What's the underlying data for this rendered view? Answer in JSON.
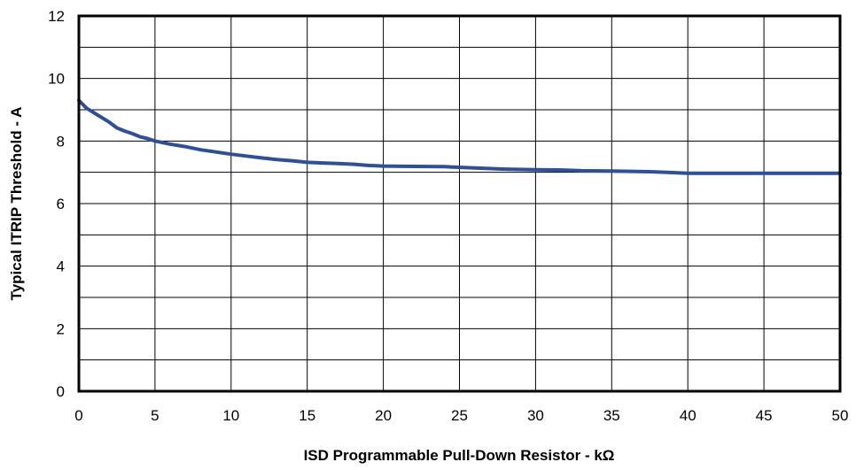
{
  "chart_data": {
    "type": "line",
    "title": "",
    "xlabel": "ISD Programmable Pull-Down Resistor - kΩ",
    "ylabel": "Typical ITRIP Threshold - A",
    "xlim": [
      0,
      50
    ],
    "ylim": [
      0,
      12
    ],
    "x_ticks": [
      "0",
      "5",
      "10",
      "15",
      "20",
      "25",
      "30",
      "35",
      "40",
      "45",
      "50"
    ],
    "y_ticks": [
      "0",
      "2",
      "4",
      "6",
      "8",
      "10",
      "12"
    ],
    "grid": true,
    "legend": "none",
    "series": [
      {
        "color": "#2e4f9c",
        "x": [
          0,
          0.5,
          1,
          1.5,
          2,
          2.5,
          3,
          3.5,
          4,
          4.5,
          5,
          6,
          7,
          8,
          9,
          10,
          11,
          12,
          13,
          14,
          15,
          16,
          17,
          18,
          19,
          20,
          22,
          24,
          26,
          28,
          30,
          32,
          33,
          35,
          37.5,
          40,
          42,
          45,
          47,
          50
        ],
        "y": [
          9.3,
          9.05,
          8.9,
          8.75,
          8.6,
          8.42,
          8.32,
          8.24,
          8.14,
          8.08,
          8.0,
          7.9,
          7.82,
          7.72,
          7.65,
          7.58,
          7.52,
          7.46,
          7.41,
          7.37,
          7.32,
          7.3,
          7.28,
          7.26,
          7.22,
          7.2,
          7.19,
          7.18,
          7.14,
          7.1,
          7.08,
          7.07,
          7.05,
          7.04,
          7.02,
          6.97,
          6.97,
          6.97,
          6.97,
          6.97
        ]
      }
    ]
  }
}
